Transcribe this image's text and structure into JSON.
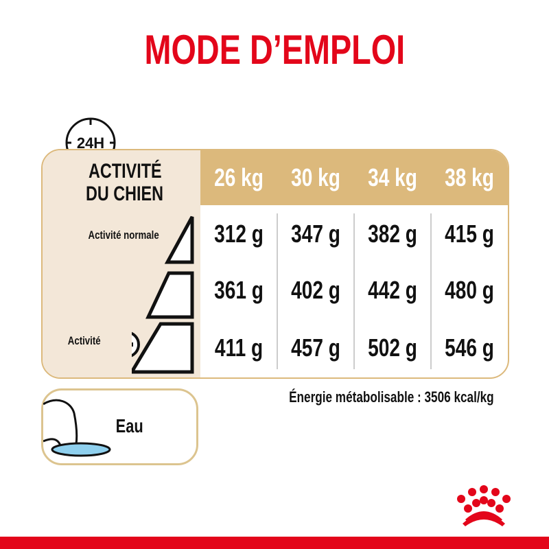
{
  "title": "MODE D’EMPLOI",
  "clock_label": "24H",
  "activity_header": [
    "ACTIVITÉ",
    "DU CHIEN"
  ],
  "weights": [
    "26 kg",
    "30 kg",
    "34 kg",
    "38 kg"
  ],
  "rows": [
    {
      "label": "Activité normale",
      "values": [
        "312 g",
        "347 g",
        "382 g",
        "415 g"
      ]
    },
    {
      "label": "",
      "values": [
        "361 g",
        "402 g",
        "442 g",
        "480 g"
      ]
    },
    {
      "label": "Activité",
      "values": [
        "411 g",
        "457 g",
        "502 g",
        "546 g"
      ]
    }
  ],
  "energy": "Énergie métabolisable : 3506 kcal/kg",
  "water_label": "Eau",
  "logo": "Royal Canin crown",
  "colors": {
    "brand_red": "#e3061a",
    "gold": "#dcb97c",
    "beige": "#f3e7d8",
    "water": "#8fd0ee"
  }
}
